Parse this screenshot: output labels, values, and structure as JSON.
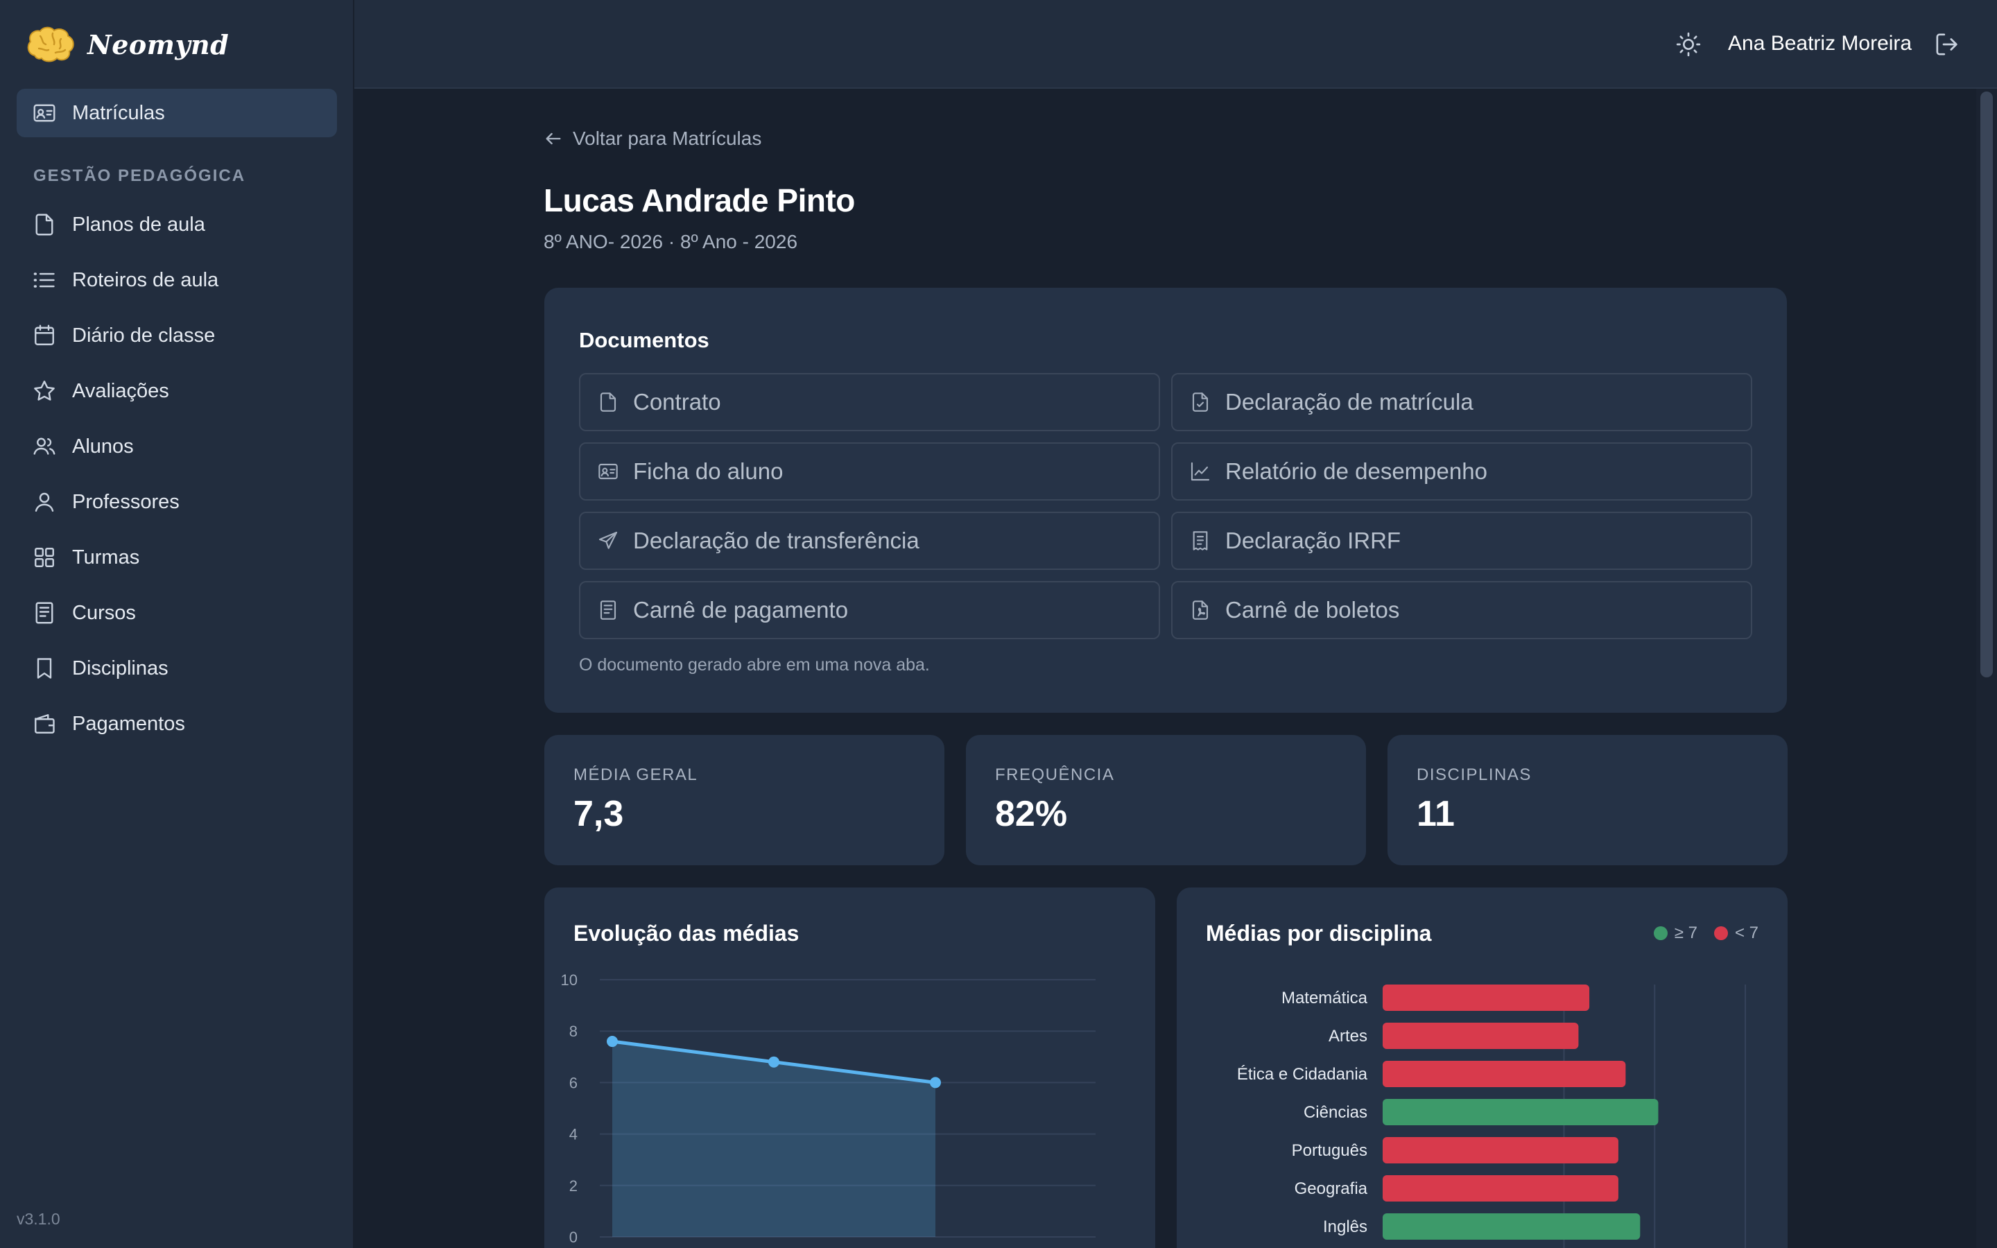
{
  "app": {
    "name": "Neomynd",
    "version": "v3.1.0"
  },
  "sidebar": {
    "active_item": {
      "label": "Matrículas",
      "icon": "id-card-icon"
    },
    "section_title": "GESTÃO PEDAGÓGICA",
    "items": [
      {
        "label": "Planos de aula",
        "icon": "file-icon"
      },
      {
        "label": "Roteiros de aula",
        "icon": "list-icon"
      },
      {
        "label": "Diário de classe",
        "icon": "calendar-icon"
      },
      {
        "label": "Avaliações",
        "icon": "star-icon"
      },
      {
        "label": "Alunos",
        "icon": "users-icon"
      },
      {
        "label": "Professores",
        "icon": "user-icon"
      },
      {
        "label": "Turmas",
        "icon": "grid-icon"
      },
      {
        "label": "Cursos",
        "icon": "book-icon"
      },
      {
        "label": "Disciplinas",
        "icon": "bookmark-icon"
      },
      {
        "label": "Pagamentos",
        "icon": "wallet-icon"
      }
    ]
  },
  "header": {
    "user_name": "Ana Beatriz Moreira"
  },
  "page": {
    "back_label": "Voltar para Matrículas",
    "student_name": "Lucas Andrade Pinto",
    "class_info": "8º ANO- 2026 · 8º Ano - 2026"
  },
  "documents": {
    "title": "Documentos",
    "buttons": [
      {
        "label": "Contrato",
        "icon": "file-icon"
      },
      {
        "label": "Declaração de matrícula",
        "icon": "file-check-icon"
      },
      {
        "label": "Ficha do aluno",
        "icon": "id-card-icon"
      },
      {
        "label": "Relatório de desempenho",
        "icon": "chart-line-icon"
      },
      {
        "label": "Declaração de transferência",
        "icon": "send-icon"
      },
      {
        "label": "Declaração IRRF",
        "icon": "receipt-icon"
      },
      {
        "label": "Carnê de pagamento",
        "icon": "booklet-icon"
      },
      {
        "label": "Carnê de boletos",
        "icon": "file-pdf-icon"
      }
    ],
    "note": "O documento gerado abre em uma nova aba."
  },
  "stats": [
    {
      "label": "MÉDIA GERAL",
      "value": "7,3"
    },
    {
      "label": "FREQUÊNCIA",
      "value": "82%"
    },
    {
      "label": "DISCIPLINAS",
      "value": "11"
    }
  ],
  "colors": {
    "above": "#3d9a6a",
    "below": "#d83a4c",
    "line": "#5ab4f0"
  },
  "chart_data": [
    {
      "type": "area",
      "title": "Evolução das médias",
      "ylim": [
        0,
        10
      ],
      "yticks": [
        "0",
        "2",
        "4",
        "6",
        "8",
        "10"
      ],
      "x": [
        1,
        2,
        3
      ],
      "values": [
        7.6,
        6.8,
        6.0
      ],
      "grid": true
    },
    {
      "type": "bar",
      "orientation": "horizontal",
      "title": "Médias por disciplina",
      "legend": [
        {
          "label": "≥ 7",
          "color": "#3d9a6a"
        },
        {
          "label": "< 7",
          "color": "#d83a4c"
        }
      ],
      "legend_placement": "top-right",
      "xlim": [
        0,
        10
      ],
      "categories": [
        "Matemática",
        "Artes",
        "Ética e Cidadania",
        "Ciências",
        "Português",
        "Geografia",
        "Inglês"
      ],
      "values": [
        5.7,
        5.4,
        6.7,
        7.6,
        6.5,
        6.5,
        7.1
      ]
    }
  ]
}
